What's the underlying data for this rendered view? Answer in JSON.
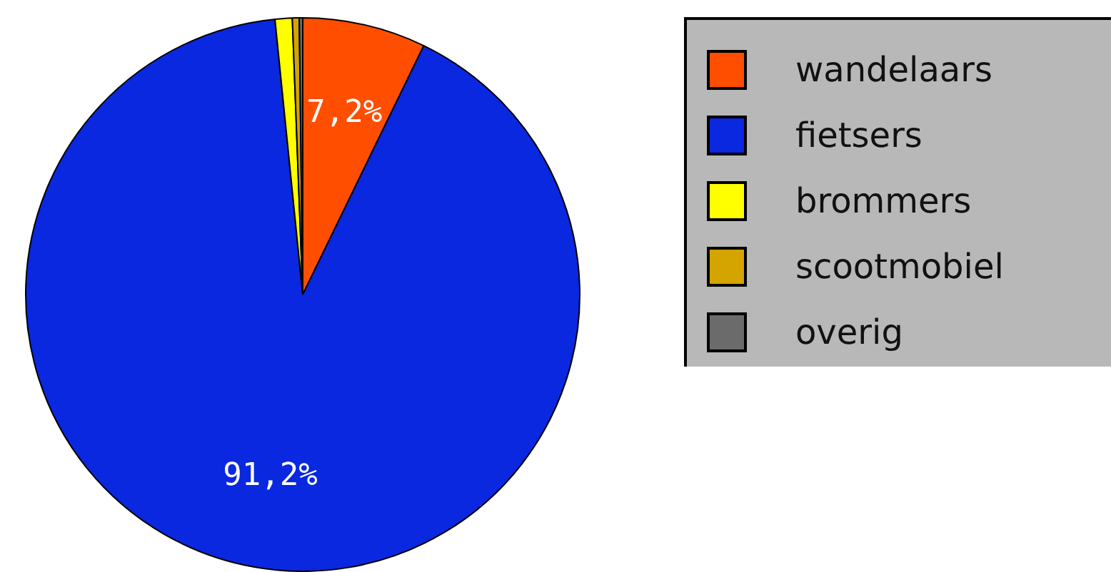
{
  "chart_data": {
    "type": "pie",
    "categories": [
      "wandelaars",
      "fietsers",
      "brommers",
      "scootmobiel",
      "overig"
    ],
    "values": [
      7.2,
      91.2,
      1.0,
      0.4,
      0.2
    ],
    "colors": [
      "#ff4e00",
      "#0a28e0",
      "#ffff00",
      "#d4a400",
      "#6b6b6b"
    ],
    "value_labels": [
      "7,2%",
      "91,2%",
      null,
      null,
      null
    ],
    "legend": "top right"
  }
}
